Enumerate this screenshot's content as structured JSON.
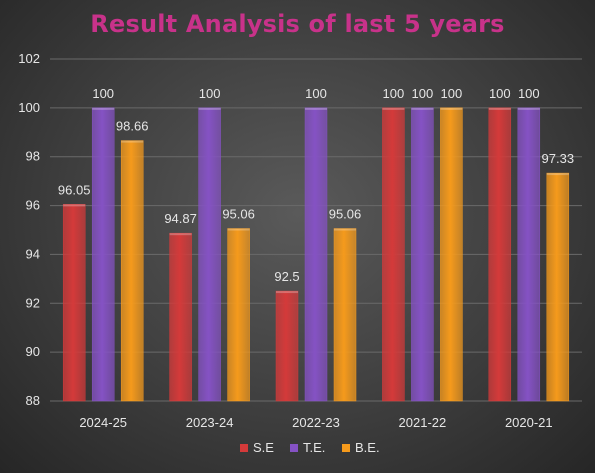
{
  "chart_data": {
    "type": "bar",
    "title": "Result Analysis of last 5 years",
    "categories": [
      "2024-25",
      "2023-24",
      "2022-23",
      "2021-22",
      "2020-21"
    ],
    "series": [
      {
        "name": "S.E",
        "color": "#d43a3a",
        "values": [
          96.05,
          94.87,
          92.5,
          100,
          100
        ]
      },
      {
        "name": "T.E.",
        "color": "#8552c4",
        "values": [
          100,
          100,
          100,
          100,
          100
        ]
      },
      {
        "name": "B.E.",
        "color": "#f59a1c",
        "values": [
          98.66,
          95.06,
          95.06,
          100,
          97.33
        ]
      }
    ],
    "data_labels": [
      [
        "96.05",
        "94.87",
        "92.5",
        "100",
        "100"
      ],
      [
        "100",
        "100",
        "100",
        "100",
        "100"
      ],
      [
        "98.66",
        "95.06",
        "95.06",
        "100",
        "97.33"
      ]
    ],
    "ylim": [
      88,
      102
    ],
    "yticks": [
      88,
      90,
      92,
      94,
      96,
      98,
      100,
      102
    ],
    "xlabel": "",
    "ylabel": "",
    "grid": true,
    "legend": "bottom",
    "colors": {
      "title": "#c8328a",
      "text": "#e6e6e6",
      "grid": "#6a6a6a"
    }
  }
}
